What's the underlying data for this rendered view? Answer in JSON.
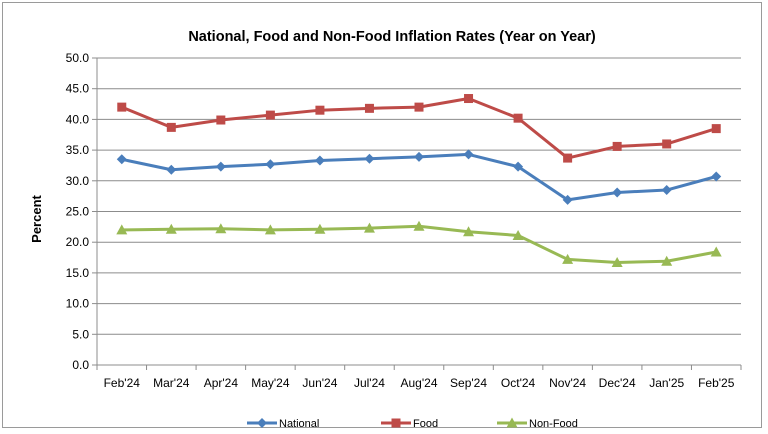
{
  "chart_data": {
    "type": "line",
    "title": "National, Food and Non-Food Inflation Rates (Year on Year)",
    "ylabel": "Percent",
    "xlabel": "",
    "ylim": [
      0,
      50
    ],
    "ystep": 5,
    "grid": true,
    "legend_position": "bottom",
    "categories": [
      "Feb'24",
      "Mar'24",
      "Apr'24",
      "May'24",
      "Jun'24",
      "Jul'24",
      "Aug'24",
      "Sep'24",
      "Oct'24",
      "Nov'24",
      "Dec'24",
      "Jan'25",
      "Feb'25"
    ],
    "y_tick_labels": [
      "0.0",
      "5.0",
      "10.0",
      "15.0",
      "20.0",
      "25.0",
      "30.0",
      "35.0",
      "40.0",
      "45.0",
      "50.0"
    ],
    "series": [
      {
        "name": "National",
        "color": "#4a7ebb",
        "marker": "diamond",
        "values": [
          33.5,
          31.8,
          32.3,
          32.7,
          33.3,
          33.6,
          33.9,
          34.3,
          32.3,
          26.9,
          28.1,
          28.5,
          30.7
        ]
      },
      {
        "name": "Food",
        "color": "#be4b48",
        "marker": "square",
        "values": [
          42.0,
          38.7,
          39.9,
          40.7,
          41.5,
          41.8,
          42.0,
          43.4,
          40.2,
          33.7,
          35.6,
          36.0,
          38.5
        ]
      },
      {
        "name": "Non-Food",
        "color": "#98b954",
        "marker": "triangle",
        "values": [
          22.0,
          22.1,
          22.2,
          22.0,
          22.1,
          22.3,
          22.6,
          21.7,
          21.1,
          17.2,
          16.7,
          16.9,
          18.4
        ]
      }
    ]
  }
}
